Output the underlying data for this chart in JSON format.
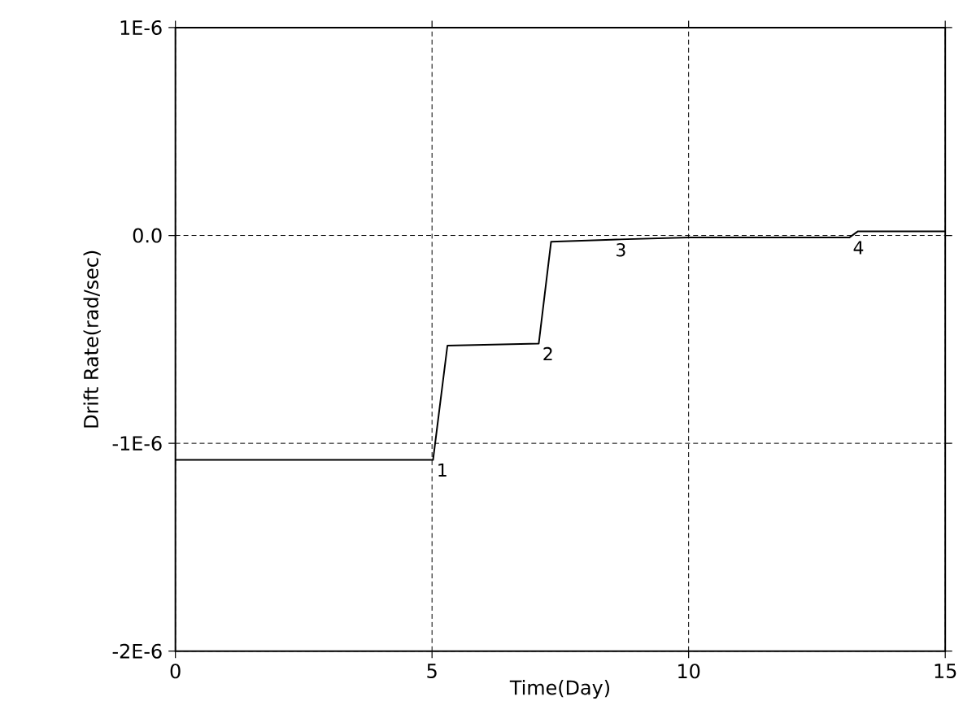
{
  "chart_data": {
    "type": "line",
    "xlabel": "Time(Day)",
    "ylabel": "Drift Rate(rad/sec)",
    "x": [
      0,
      5.02,
      5.3,
      7.08,
      7.32,
      8.5,
      10,
      11.5,
      13.13,
      13.3,
      15
    ],
    "values": [
      -1.08e-06,
      -1.08e-06,
      -5.3e-07,
      -5.2e-07,
      -3e-08,
      -2e-08,
      -1e-08,
      -1e-08,
      -1e-08,
      2e-08,
      2e-08
    ],
    "color": "#000000",
    "line_style": "solid",
    "marker": "none",
    "grid": true,
    "xlim": [
      0,
      15
    ],
    "xticks": [
      0,
      5,
      10,
      15
    ],
    "ylim": [
      -2e-06,
      1e-06
    ],
    "yticks": [
      {
        "value": -2e-06,
        "label": "-2E-6"
      },
      {
        "value": -1e-06,
        "label": "-1E-6"
      },
      {
        "value": 0,
        "label": "0.0"
      },
      {
        "value": 1e-06,
        "label": "1E-6"
      }
    ],
    "annotations": [
      {
        "text": "1",
        "x": 5.02,
        "y": -1.08e-06
      },
      {
        "text": "2",
        "x": 7.08,
        "y": -5.2e-07
      },
      {
        "text": "3",
        "x": 8.5,
        "y": -2e-08
      },
      {
        "text": "4",
        "x": 13.13,
        "y": -1e-08
      }
    ]
  }
}
